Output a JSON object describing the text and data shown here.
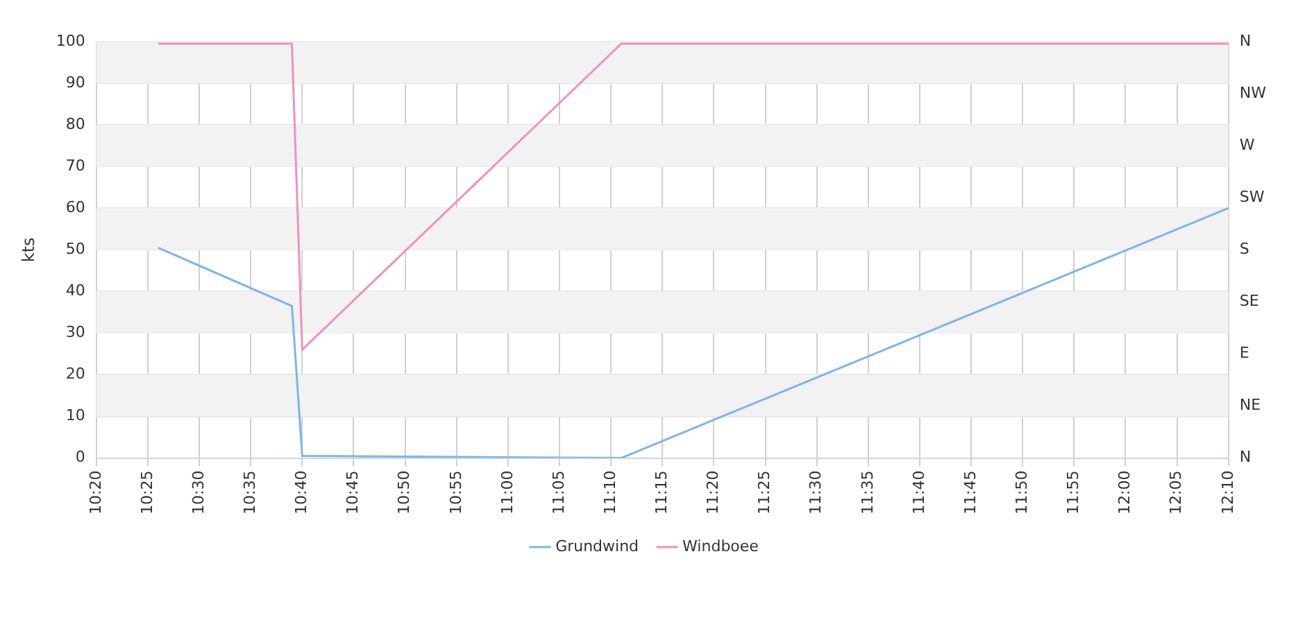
{
  "chart_data": {
    "type": "line",
    "ylabel": "kts",
    "x": [
      10.4333,
      10.65,
      10.6667,
      11.1833,
      12.1667
    ],
    "series": [
      {
        "name": "Grundwind",
        "color": "#7cb5ec",
        "values": [
          50.5,
          36.5,
          0.5,
          0,
          60
        ]
      },
      {
        "name": "Windboee",
        "color": "#f08fbf",
        "values": [
          99.5,
          99.5,
          26,
          99.5,
          99.5
        ]
      }
    ],
    "xlim": [
      10.3333,
      12.1667
    ],
    "xticks": [
      {
        "value": 10.3333,
        "label": "10:20"
      },
      {
        "value": 10.4167,
        "label": "10:25"
      },
      {
        "value": 10.5,
        "label": "10:30"
      },
      {
        "value": 10.5833,
        "label": "10:35"
      },
      {
        "value": 10.6667,
        "label": "10:40"
      },
      {
        "value": 10.75,
        "label": "10:45"
      },
      {
        "value": 10.8333,
        "label": "10:50"
      },
      {
        "value": 10.9167,
        "label": "10:55"
      },
      {
        "value": 11,
        "label": "11:00"
      },
      {
        "value": 11.0833,
        "label": "11:05"
      },
      {
        "value": 11.1667,
        "label": "11:10"
      },
      {
        "value": 11.25,
        "label": "11:15"
      },
      {
        "value": 11.3333,
        "label": "11:20"
      },
      {
        "value": 11.4167,
        "label": "11:25"
      },
      {
        "value": 11.5,
        "label": "11:30"
      },
      {
        "value": 11.5833,
        "label": "11:35"
      },
      {
        "value": 11.6667,
        "label": "11:40"
      },
      {
        "value": 11.75,
        "label": "11:45"
      },
      {
        "value": 11.8333,
        "label": "11:50"
      },
      {
        "value": 11.9167,
        "label": "11:55"
      },
      {
        "value": 12,
        "label": "12:00"
      },
      {
        "value": 12.0833,
        "label": "12:05"
      },
      {
        "value": 12.1667,
        "label": "12:10"
      }
    ],
    "ylim": [
      0,
      100
    ],
    "yticks": [
      0,
      10,
      20,
      30,
      40,
      50,
      60,
      70,
      80,
      90,
      100
    ],
    "y2_categories": [
      "N",
      "NW",
      "W",
      "SW",
      "S",
      "SE",
      "E",
      "NE",
      "N"
    ],
    "bands": [
      {
        "axis": "y",
        "from": 10,
        "to": 20,
        "color": "#f2f2f2"
      },
      {
        "axis": "y",
        "from": 30,
        "to": 40,
        "color": "#f2f2f2"
      },
      {
        "axis": "y",
        "from": 50,
        "to": 60,
        "color": "#f2f2f2"
      },
      {
        "axis": "y",
        "from": 70,
        "to": 80,
        "color": "#f2f2f2"
      },
      {
        "axis": "y",
        "from": 90,
        "to": 100,
        "color": "#f2f2f2"
      }
    ],
    "grid": true,
    "legend": "bottom",
    "marker": "none",
    "line_style": "solid"
  }
}
